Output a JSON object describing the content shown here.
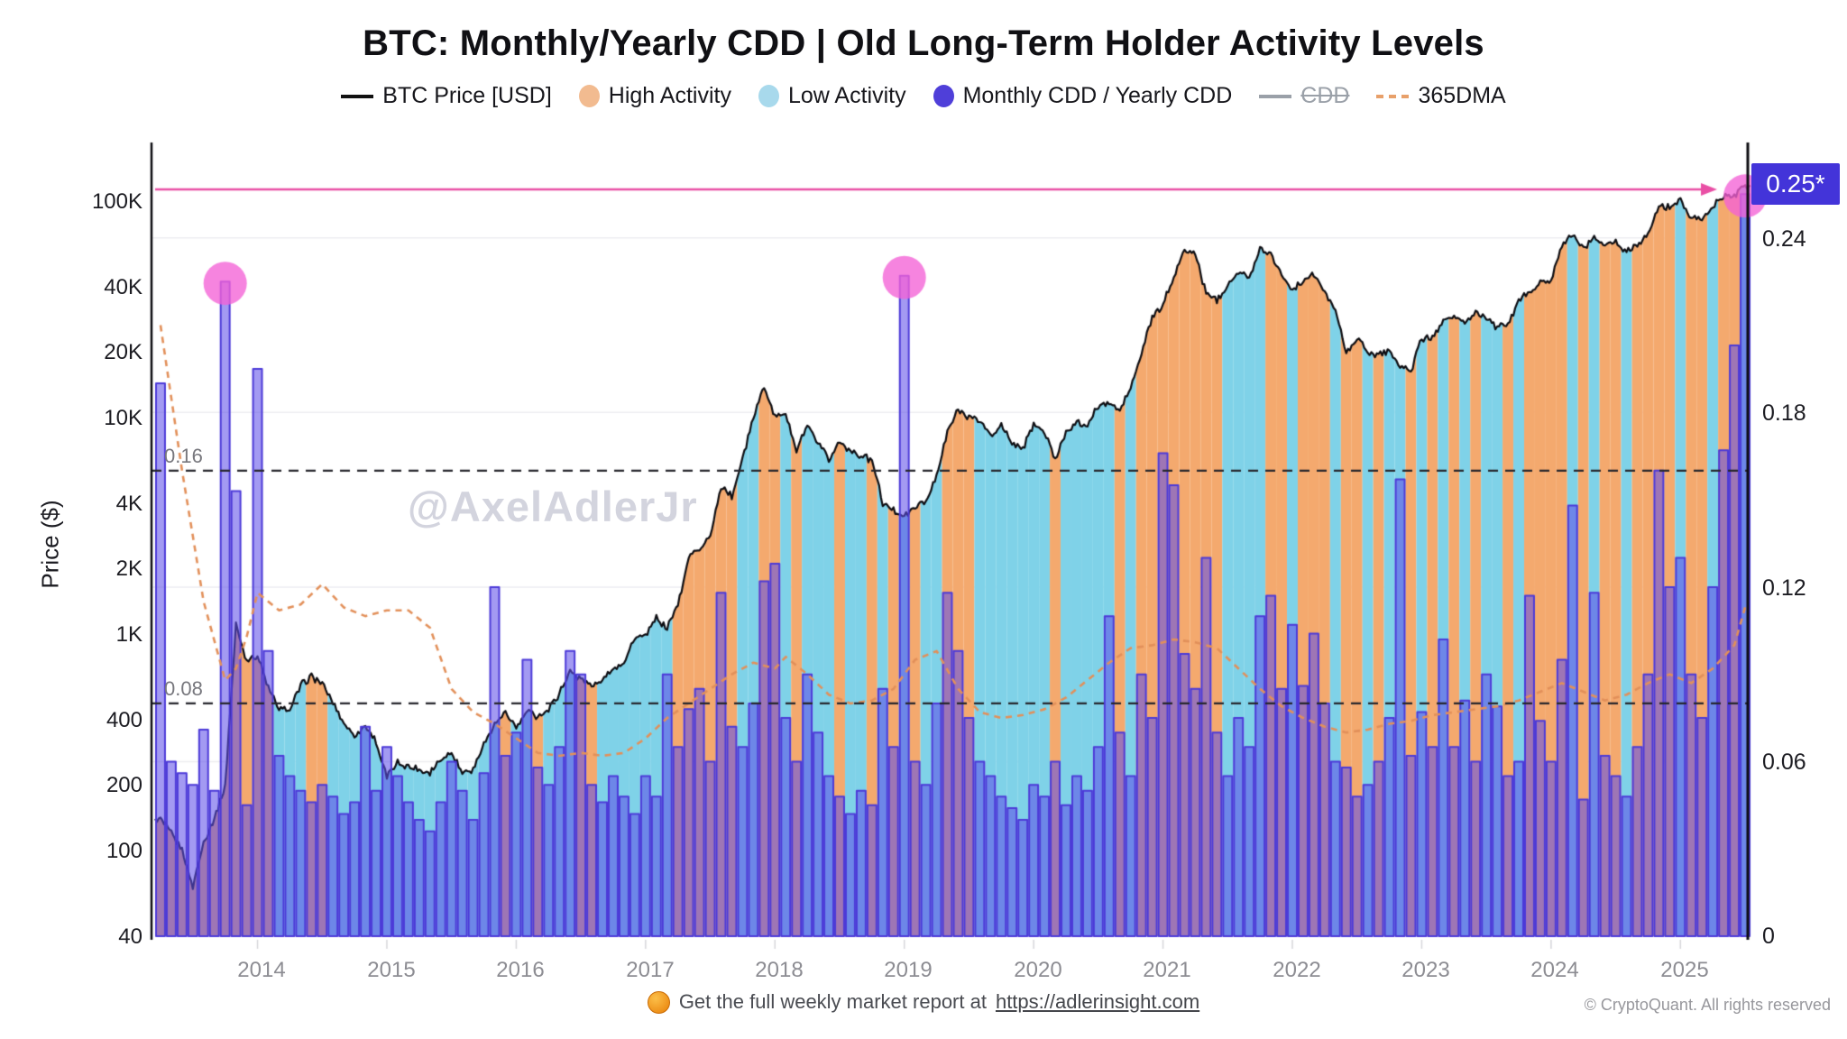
{
  "header": {
    "title": "BTC: Monthly/Yearly CDD | Old Long-Term Holder Activity Levels",
    "legend": [
      {
        "label": "BTC Price [USD]",
        "swatch": "line",
        "color": "#111111"
      },
      {
        "label": "High Activity",
        "swatch": "dot",
        "color": "#f2bb90"
      },
      {
        "label": "Low Activity",
        "swatch": "dot",
        "color": "#a8d9ec"
      },
      {
        "label": "Monthly CDD / Yearly CDD",
        "swatch": "dot",
        "color": "#4f3fd9"
      },
      {
        "label": "CDD",
        "swatch": "line",
        "color": "#9aa0a8",
        "disabled": true
      },
      {
        "label": "365DMA",
        "swatch": "dashed-line",
        "color": "#e8a06a"
      }
    ]
  },
  "watermark": "@AxelAdlerJr",
  "axes": {
    "y_left": {
      "label": "Price ($)",
      "scale": "log",
      "ticks": [
        {
          "value": 100000,
          "label": "100K"
        },
        {
          "value": 40000,
          "label": "40K"
        },
        {
          "value": 20000,
          "label": "20K"
        },
        {
          "value": 10000,
          "label": "10K"
        },
        {
          "value": 4000,
          "label": "4K"
        },
        {
          "value": 2000,
          "label": "2K"
        },
        {
          "value": 1000,
          "label": "1K"
        },
        {
          "value": 400,
          "label": "400"
        },
        {
          "value": 200,
          "label": "200"
        },
        {
          "value": 100,
          "label": "100"
        },
        {
          "value": 40,
          "label": "40"
        }
      ]
    },
    "y_right": {
      "scale": "linear",
      "range": [
        0,
        0.26
      ],
      "ticks": [
        {
          "value": 0.24,
          "label": "0.24"
        },
        {
          "value": 0.18,
          "label": "0.18"
        },
        {
          "value": 0.12,
          "label": "0.12"
        },
        {
          "value": 0.06,
          "label": "0.06"
        },
        {
          "value": 0,
          "label": "0"
        }
      ]
    },
    "x": {
      "years": [
        "2014",
        "2015",
        "2016",
        "2017",
        "2018",
        "2019",
        "2020",
        "2021",
        "2022",
        "2023",
        "2024",
        "2025"
      ]
    }
  },
  "annotations": {
    "upper_band": {
      "value": 0.16,
      "label": "0.16"
    },
    "lower_band": {
      "value": 0.08,
      "label": "0.08"
    },
    "current_badge": "0.25*",
    "current_level_value": 0.255,
    "highlighted_spike_months": [
      "2013-10",
      "2019-01",
      "2025-07"
    ]
  },
  "footer": {
    "center_text": "Get the full weekly market report at ",
    "link": "https://adlerinsight.com",
    "right_text": "© CryptoQuant. All rights reserved"
  },
  "chart_data": {
    "type": "composite",
    "subtypes": [
      "line-log-price",
      "bar",
      "area-regime",
      "dashed-ma"
    ],
    "title": "BTC: Monthly/Yearly CDD | Old Long-Term Holder Activity Levels",
    "x_start_month": "2013-04",
    "x_end_month": "2025-07",
    "months_count": 148,
    "price_usd": [
      140,
      120,
      100,
      68,
      110,
      140,
      200,
      1100,
      750,
      800,
      560,
      450,
      445,
      580,
      635,
      585,
      480,
      390,
      340,
      375,
      320,
      218,
      254,
      244,
      236,
      230,
      263,
      284,
      230,
      236,
      314,
      377,
      430,
      368,
      437,
      416,
      448,
      531,
      670,
      624,
      575,
      610,
      700,
      745,
      960,
      970,
      1180,
      1070,
      1350,
      2280,
      2480,
      2870,
      4700,
      4340,
      6470,
      9900,
      13900,
      10200,
      10400,
      6970,
      9240,
      7490,
      6400,
      7780,
      7040,
      6620,
      6320,
      4020,
      3740,
      3460,
      3850,
      4100,
      5350,
      8570,
      10800,
      10100,
      9630,
      8290,
      9200,
      7570,
      7190,
      9350,
      8600,
      6440,
      8660,
      9460,
      9140,
      11350,
      11650,
      10780,
      13780,
      19700,
      29000,
      33100,
      45100,
      58800,
      57750,
      37300,
      35000,
      41600,
      47200,
      43800,
      61300,
      57000,
      46200,
      38500,
      43200,
      45500,
      37700,
      31800,
      20000,
      23300,
      20050,
      19400,
      20500,
      17170,
      16550,
      23100,
      23150,
      28500,
      29270,
      27200,
      30480,
      29230,
      25930,
      26970,
      34660,
      37700,
      42260,
      42580,
      61200,
      71300,
      60640,
      67490,
      62680,
      64620,
      58970,
      63330,
      70200,
      96400,
      93400,
      102400,
      84300,
      82500,
      94200,
      104600,
      107100,
      118000
    ],
    "cdd_monthly_over_yearly": [
      0.19,
      0.06,
      0.056,
      0.052,
      0.071,
      0.05,
      0.225,
      0.153,
      0.045,
      0.195,
      0.098,
      0.062,
      0.055,
      0.05,
      0.046,
      0.052,
      0.048,
      0.042,
      0.046,
      0.072,
      0.05,
      0.065,
      0.055,
      0.046,
      0.04,
      0.036,
      0.046,
      0.06,
      0.05,
      0.04,
      0.056,
      0.12,
      0.062,
      0.07,
      0.095,
      0.058,
      0.052,
      0.065,
      0.098,
      0.09,
      0.052,
      0.046,
      0.055,
      0.048,
      0.042,
      0.055,
      0.048,
      0.09,
      0.065,
      0.078,
      0.085,
      0.06,
      0.118,
      0.072,
      0.065,
      0.08,
      0.122,
      0.128,
      0.075,
      0.06,
      0.09,
      0.07,
      0.055,
      0.048,
      0.042,
      0.05,
      0.045,
      0.085,
      0.065,
      0.227,
      0.06,
      0.052,
      0.08,
      0.118,
      0.098,
      0.075,
      0.06,
      0.055,
      0.048,
      0.044,
      0.04,
      0.052,
      0.048,
      0.06,
      0.045,
      0.055,
      0.05,
      0.065,
      0.11,
      0.07,
      0.055,
      0.09,
      0.075,
      0.166,
      0.155,
      0.097,
      0.085,
      0.13,
      0.07,
      0.055,
      0.075,
      0.065,
      0.11,
      0.117,
      0.085,
      0.107,
      0.086,
      0.104,
      0.08,
      0.06,
      0.058,
      0.048,
      0.052,
      0.06,
      0.075,
      0.157,
      0.062,
      0.077,
      0.065,
      0.102,
      0.065,
      0.081,
      0.06,
      0.09,
      0.079,
      0.055,
      0.06,
      0.117,
      0.074,
      0.06,
      0.095,
      0.148,
      0.047,
      0.118,
      0.062,
      0.055,
      0.048,
      0.065,
      0.09,
      0.16,
      0.12,
      0.13,
      0.09,
      0.075,
      0.12,
      0.167,
      0.203,
      0.255
    ],
    "activity_regime_per_month": "HHHHHHHHHHHLLLHHLLLLLLLLLLLLLLLLHLLHLLLHHLLLLLLLHHHHHHLLHHLHLLLHLLHLHLHLLHHHLLLLLLLHLLLLLHLHHHHHHHHLLLLHHLHHHLHHLHLLHLHLHLHLLHLHHHHLHLHHLHHHHLHHLHH",
    "dma365_points": [
      [
        0,
        0.21
      ],
      [
        2,
        0.16
      ],
      [
        4,
        0.115
      ],
      [
        6,
        0.088
      ],
      [
        7,
        0.092
      ],
      [
        8,
        0.103
      ],
      [
        9,
        0.118
      ],
      [
        11,
        0.112
      ],
      [
        13,
        0.114
      ],
      [
        15,
        0.121
      ],
      [
        17,
        0.113
      ],
      [
        19,
        0.11
      ],
      [
        21,
        0.112
      ],
      [
        23,
        0.112
      ],
      [
        25,
        0.106
      ],
      [
        27,
        0.085
      ],
      [
        29,
        0.077
      ],
      [
        31,
        0.073
      ],
      [
        33,
        0.068
      ],
      [
        35,
        0.063
      ],
      [
        37,
        0.062
      ],
      [
        39,
        0.063
      ],
      [
        41,
        0.062
      ],
      [
        43,
        0.063
      ],
      [
        45,
        0.068
      ],
      [
        47,
        0.075
      ],
      [
        49,
        0.08
      ],
      [
        51,
        0.085
      ],
      [
        53,
        0.09
      ],
      [
        55,
        0.094
      ],
      [
        57,
        0.092
      ],
      [
        58,
        0.096
      ],
      [
        60,
        0.09
      ],
      [
        62,
        0.083
      ],
      [
        64,
        0.08
      ],
      [
        66,
        0.081
      ],
      [
        68,
        0.085
      ],
      [
        70,
        0.095
      ],
      [
        72,
        0.098
      ],
      [
        74,
        0.085
      ],
      [
        76,
        0.077
      ],
      [
        78,
        0.075
      ],
      [
        80,
        0.076
      ],
      [
        82,
        0.078
      ],
      [
        84,
        0.082
      ],
      [
        86,
        0.088
      ],
      [
        88,
        0.094
      ],
      [
        90,
        0.099
      ],
      [
        92,
        0.1
      ],
      [
        94,
        0.102
      ],
      [
        96,
        0.101
      ],
      [
        98,
        0.099
      ],
      [
        100,
        0.092
      ],
      [
        102,
        0.085
      ],
      [
        104,
        0.079
      ],
      [
        106,
        0.075
      ],
      [
        108,
        0.072
      ],
      [
        110,
        0.07
      ],
      [
        112,
        0.071
      ],
      [
        114,
        0.073
      ],
      [
        116,
        0.074
      ],
      [
        118,
        0.076
      ],
      [
        120,
        0.077
      ],
      [
        122,
        0.078
      ],
      [
        124,
        0.079
      ],
      [
        126,
        0.081
      ],
      [
        128,
        0.084
      ],
      [
        130,
        0.087
      ],
      [
        132,
        0.084
      ],
      [
        134,
        0.081
      ],
      [
        136,
        0.083
      ],
      [
        138,
        0.087
      ],
      [
        140,
        0.09
      ],
      [
        142,
        0.087
      ],
      [
        144,
        0.092
      ],
      [
        146,
        0.1
      ],
      [
        147,
        0.113
      ]
    ],
    "highlight_month_indices": [
      6,
      69,
      147
    ],
    "colors": {
      "high_activity_fill": "#f4a96e",
      "low_activity_fill": "#7fd2e8",
      "bar_fill": "rgba(97,81,232,0.58)",
      "bar_stroke": "#4c3ad8",
      "price_line": "#0d0d12",
      "dma_line": "#e2905a",
      "band_dash": "#26262c",
      "gridline": "#ededf0",
      "pink_line": "#e94fa5",
      "pink_circle": "rgba(244,98,214,0.78)",
      "badge_bg": "#4334d9"
    },
    "layout": {
      "grid": "horizontal-right-ticks",
      "legend_position": "top-center",
      "log_price_axis_left": true,
      "ratio_axis_right": true
    }
  }
}
